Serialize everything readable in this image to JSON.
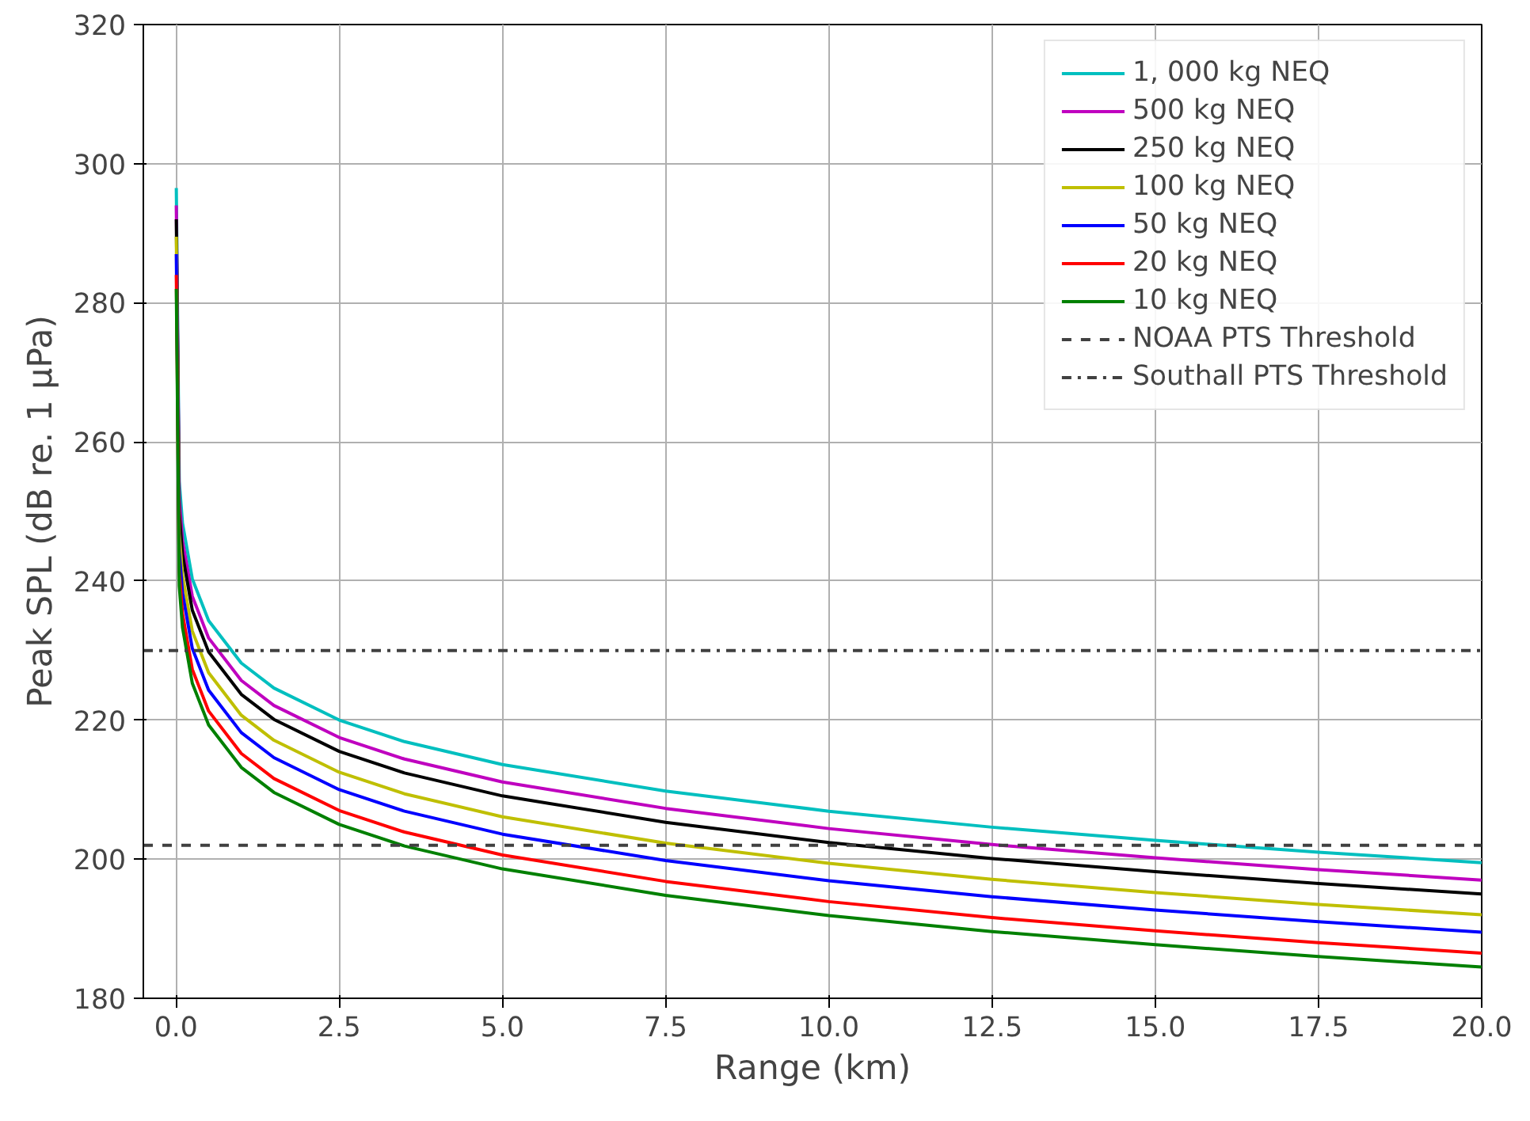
{
  "chart_data": {
    "type": "line",
    "xlabel": "Range (km)",
    "ylabel": "Peak SPL (dB re. 1 μPa)",
    "x": [
      0.005,
      0.05,
      0.1,
      0.25,
      0.5,
      1,
      1.5,
      2.5,
      3.5,
      5,
      7.5,
      10,
      12.5,
      15,
      17.5,
      20
    ],
    "series": [
      {
        "name": "1, 000 kg NEQ",
        "color": "#00bfbf",
        "values": [
          296.5,
          254.3,
          248.3,
          240.3,
          234.3,
          228.2,
          224.6,
          220.0,
          216.9,
          213.6,
          209.8,
          206.9,
          204.6,
          202.7,
          201.0,
          199.5
        ]
      },
      {
        "name": "500 kg NEQ",
        "color": "#bf00bf",
        "values": [
          294,
          251.8,
          245.8,
          237.8,
          231.8,
          225.7,
          222.1,
          217.5,
          214.4,
          211.1,
          207.3,
          204.4,
          202.1,
          200.2,
          198.5,
          197.0
        ]
      },
      {
        "name": "250 kg NEQ",
        "color": "#000000",
        "values": [
          292,
          249.8,
          243.8,
          235.8,
          229.8,
          223.7,
          220.1,
          215.5,
          212.4,
          209.1,
          205.3,
          202.4,
          200.1,
          198.2,
          196.5,
          195.0
        ]
      },
      {
        "name": "100 kg NEQ",
        "color": "#bfbf00",
        "values": [
          289.5,
          246.8,
          240.8,
          232.8,
          226.8,
          220.7,
          217.1,
          212.5,
          209.4,
          206.1,
          202.3,
          199.4,
          197.1,
          195.2,
          193.5,
          192.0
        ]
      },
      {
        "name": "50 kg NEQ",
        "color": "#0000ff",
        "values": [
          287,
          244.3,
          238.3,
          230.3,
          224.3,
          218.2,
          214.6,
          210.0,
          206.9,
          203.6,
          199.8,
          196.9,
          194.6,
          192.7,
          191.0,
          189.5
        ]
      },
      {
        "name": "20 kg NEQ",
        "color": "#ff0000",
        "values": [
          284,
          241.3,
          235.3,
          227.3,
          221.3,
          215.2,
          211.6,
          207.0,
          203.9,
          200.6,
          196.8,
          193.9,
          191.6,
          189.7,
          188.0,
          186.5
        ]
      },
      {
        "name": "10 kg NEQ",
        "color": "#008000",
        "values": [
          282,
          239.3,
          233.3,
          225.3,
          219.3,
          213.2,
          209.6,
          205.0,
          201.9,
          198.6,
          194.8,
          191.9,
          189.6,
          187.7,
          186.0,
          184.5
        ]
      }
    ],
    "ref_lines": [
      {
        "axis": "y",
        "value": 202,
        "label": "NOAA PTS Threshold",
        "color": "#404040",
        "line_style": "dashed"
      },
      {
        "axis": "y",
        "value": 230,
        "label": "Southall PTS Threshold",
        "color": "#404040",
        "line_style": "dashdot"
      }
    ],
    "xlim": [
      -0.5,
      20
    ],
    "ylim": [
      180,
      320
    ],
    "xticks": [
      {
        "value": 0,
        "label": "0.0"
      },
      2.5,
      {
        "value": 5,
        "label": "5.0"
      },
      7.5,
      {
        "value": 10,
        "label": "10.0"
      },
      12.5,
      {
        "value": 15,
        "label": "15.0"
      },
      17.5,
      {
        "value": 20,
        "label": "20.0"
      }
    ],
    "yticks": [
      180,
      200,
      220,
      240,
      260,
      280,
      300,
      320
    ],
    "grid": true,
    "legend": "top right",
    "line_style": "solid"
  }
}
